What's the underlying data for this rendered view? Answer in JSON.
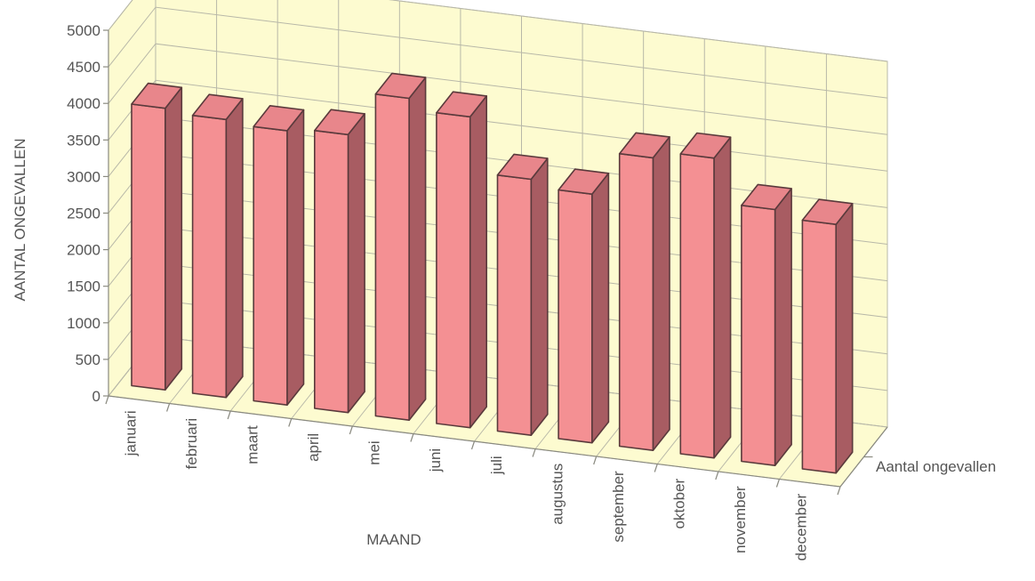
{
  "chart_data": {
    "type": "bar",
    "title": "",
    "xlabel": "MAAND",
    "ylabel": "AANTAL ONGEVALLEN",
    "ylim": [
      0,
      5000
    ],
    "yticks": [
      0,
      500,
      1000,
      1500,
      2000,
      2500,
      3000,
      3500,
      4000,
      4500,
      5000
    ],
    "grid": true,
    "projection": "3d",
    "categories": [
      "januari",
      "februari",
      "maart",
      "april",
      "mei",
      "juni",
      "juli",
      "augustus",
      "september",
      "oktober",
      "november",
      "december"
    ],
    "series": [
      {
        "name": "Aantal ongevallen",
        "values": [
          3850,
          3800,
          3750,
          3800,
          4400,
          4250,
          3500,
          3400,
          4000,
          4100,
          3500,
          3400
        ]
      }
    ]
  },
  "colors": {
    "bar_front": "#f49093",
    "bar_side": "#a85c62",
    "bar_top": "#e8868b",
    "bar_edge": "#5a3a3c",
    "wall": "#fdfbd0",
    "floor": "#fdfbd0",
    "grid": "#b8b8a8"
  }
}
